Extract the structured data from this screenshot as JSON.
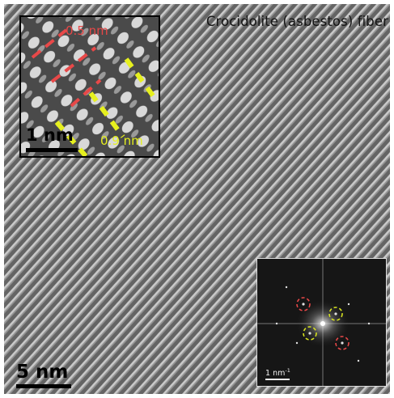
{
  "figure": {
    "title": "Crocidolite (asbestos) fiber",
    "main_scale_bar": "5 nm",
    "inset": {
      "scale_bar": "1 nm",
      "red_spacing_label": "0.5 nm",
      "yellow_spacing_label": "0.9 nm"
    },
    "fft": {
      "scale_label": "1 nm",
      "scale_unit_exponent": "-1"
    }
  },
  "colors": {
    "red_marker": "#e84848",
    "yellow_marker": "#e6f01f"
  }
}
